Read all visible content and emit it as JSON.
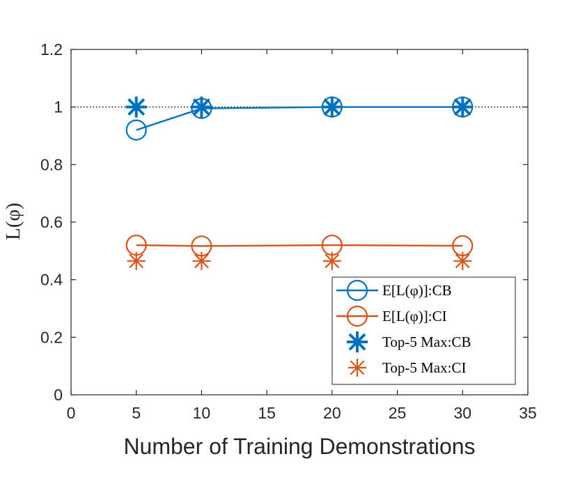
{
  "chart_data": {
    "type": "line",
    "title": "",
    "xlabel": "Number of Training Demonstrations",
    "ylabel": "L(φ)",
    "xlim": [
      0,
      35
    ],
    "ylim": [
      0,
      1.2
    ],
    "xticks": [
      0,
      5,
      10,
      15,
      20,
      25,
      30,
      35
    ],
    "yticks": [
      0,
      0.2,
      0.4,
      0.6,
      0.8,
      1,
      1.2
    ],
    "xtick_labels": [
      "0",
      "5",
      "10",
      "15",
      "20",
      "25",
      "30",
      "35"
    ],
    "ytick_labels": [
      "0",
      "0.2",
      "0.4",
      "0.6",
      "0.8",
      "1",
      "1.2"
    ],
    "reference_line": 1,
    "legend_position": "bottom-right",
    "series": [
      {
        "name": "E[L(φ)]:CB",
        "x": [
          5,
          10,
          20,
          30
        ],
        "values": [
          0.92,
          0.995,
          1.0,
          1.0
        ],
        "color": "#0072BD",
        "marker": "circle",
        "line": true
      },
      {
        "name": "E[L(φ)]:CI",
        "x": [
          5,
          10,
          20,
          30
        ],
        "values": [
          0.52,
          0.517,
          0.52,
          0.518
        ],
        "color": "#D95319",
        "marker": "circle",
        "line": true
      },
      {
        "name": "Top-5 Max:CB",
        "x": [
          5,
          10,
          20,
          30
        ],
        "values": [
          1.0,
          1.0,
          1.0,
          1.0
        ],
        "color": "#0072BD",
        "marker": "asterisk-bold",
        "line": false
      },
      {
        "name": "Top-5 Max:CI",
        "x": [
          5,
          10,
          20,
          30
        ],
        "values": [
          0.465,
          0.465,
          0.465,
          0.465
        ],
        "color": "#D95319",
        "marker": "asterisk",
        "line": false
      }
    ]
  }
}
